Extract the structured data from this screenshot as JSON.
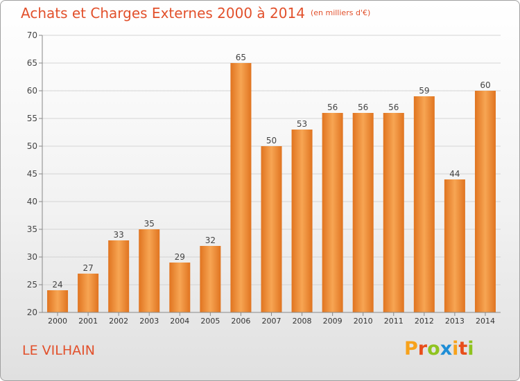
{
  "title": "Achats et Charges Externes 2000 à 2014",
  "unit": "(en milliers d'€)",
  "location": "LE VILHAIN",
  "logo": {
    "letters": [
      "P",
      "r",
      "o",
      "x",
      "i",
      "t",
      "i"
    ],
    "colors": [
      "#f7a21b",
      "#e84e1b",
      "#8fc31f",
      "#1f8ed6",
      "#f7a21b",
      "#e84e1b",
      "#8fc31f"
    ]
  },
  "chart_data": {
    "type": "bar",
    "title": "Achats et Charges Externes 2000 à 2014",
    "xlabel": "",
    "ylabel": "",
    "ylim": [
      20,
      70
    ],
    "yticks": [
      "20",
      "25",
      "30",
      "35",
      "40",
      "45",
      "50",
      "55",
      "60",
      "65",
      "70"
    ],
    "grid": true,
    "bar_color": "#f0923c",
    "categories": [
      "2000",
      "2001",
      "2002",
      "2003",
      "2004",
      "2005",
      "2006",
      "2007",
      "2008",
      "2009",
      "2010",
      "2011",
      "2012",
      "2013",
      "2014"
    ],
    "values": [
      24,
      27,
      33,
      35,
      29,
      32,
      65,
      50,
      53,
      56,
      56,
      56,
      59,
      44,
      60
    ],
    "value_labels": [
      "24",
      "27",
      "33",
      "35",
      "29",
      "32",
      "65",
      "50",
      "53",
      "56",
      "56",
      "56",
      "59",
      "44",
      "60"
    ]
  }
}
